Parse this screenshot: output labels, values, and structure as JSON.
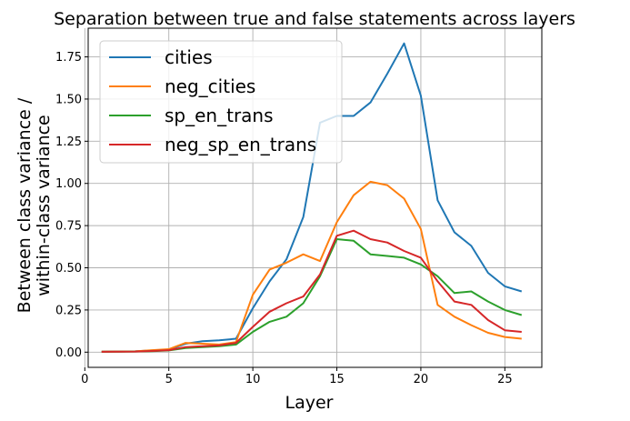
{
  "chart_data": {
    "type": "line",
    "title": "Separation between true and false statements across layers",
    "xlabel": "Layer",
    "ylabel_lines": [
      "Between class variance /",
      "within-class variance"
    ],
    "xlim": [
      0.2,
      27.2
    ],
    "ylim": [
      -0.09,
      1.92
    ],
    "xticks": [
      0,
      5,
      10,
      15,
      20,
      25
    ],
    "xtick_labels": [
      "0",
      "5",
      "10",
      "15",
      "20",
      "25"
    ],
    "yticks": [
      0.0,
      0.25,
      0.5,
      0.75,
      1.0,
      1.25,
      1.5,
      1.75
    ],
    "ytick_labels": [
      "0.00",
      "0.25",
      "0.50",
      "0.75",
      "1.00",
      "1.25",
      "1.50",
      "1.75"
    ],
    "grid": true,
    "legend_position": "upper-left",
    "x": [
      1,
      2,
      3,
      4,
      5,
      6,
      7,
      8,
      9,
      10,
      11,
      12,
      13,
      14,
      15,
      16,
      17,
      18,
      19,
      20,
      21,
      22,
      23,
      24,
      25,
      26
    ],
    "series": [
      {
        "name": "cities",
        "color": "#1f77b4",
        "values": [
          0.003,
          0.004,
          0.005,
          0.01,
          0.015,
          0.05,
          0.065,
          0.07,
          0.08,
          0.26,
          0.42,
          0.55,
          0.8,
          1.36,
          1.4,
          1.4,
          1.48,
          1.65,
          1.83,
          1.52,
          0.9,
          0.71,
          0.63,
          0.47,
          0.39,
          0.36
        ]
      },
      {
        "name": "neg_cities",
        "color": "#ff7f0e",
        "values": [
          0.003,
          0.004,
          0.005,
          0.012,
          0.018,
          0.055,
          0.05,
          0.045,
          0.06,
          0.34,
          0.49,
          0.53,
          0.58,
          0.54,
          0.77,
          0.93,
          1.01,
          0.99,
          0.91,
          0.73,
          0.28,
          0.21,
          0.16,
          0.115,
          0.09,
          0.08
        ]
      },
      {
        "name": "sp_en_trans",
        "color": "#2ca02c",
        "values": [
          0.002,
          0.003,
          0.004,
          0.006,
          0.01,
          0.025,
          0.03,
          0.035,
          0.045,
          0.12,
          0.18,
          0.21,
          0.29,
          0.45,
          0.67,
          0.66,
          0.58,
          0.57,
          0.56,
          0.52,
          0.45,
          0.35,
          0.36,
          0.3,
          0.25,
          0.22
        ]
      },
      {
        "name": "neg_sp_en_trans",
        "color": "#d62728",
        "values": [
          0.002,
          0.003,
          0.004,
          0.007,
          0.012,
          0.03,
          0.035,
          0.04,
          0.055,
          0.15,
          0.24,
          0.29,
          0.33,
          0.46,
          0.69,
          0.72,
          0.67,
          0.65,
          0.6,
          0.56,
          0.42,
          0.3,
          0.28,
          0.19,
          0.13,
          0.12
        ]
      }
    ]
  }
}
